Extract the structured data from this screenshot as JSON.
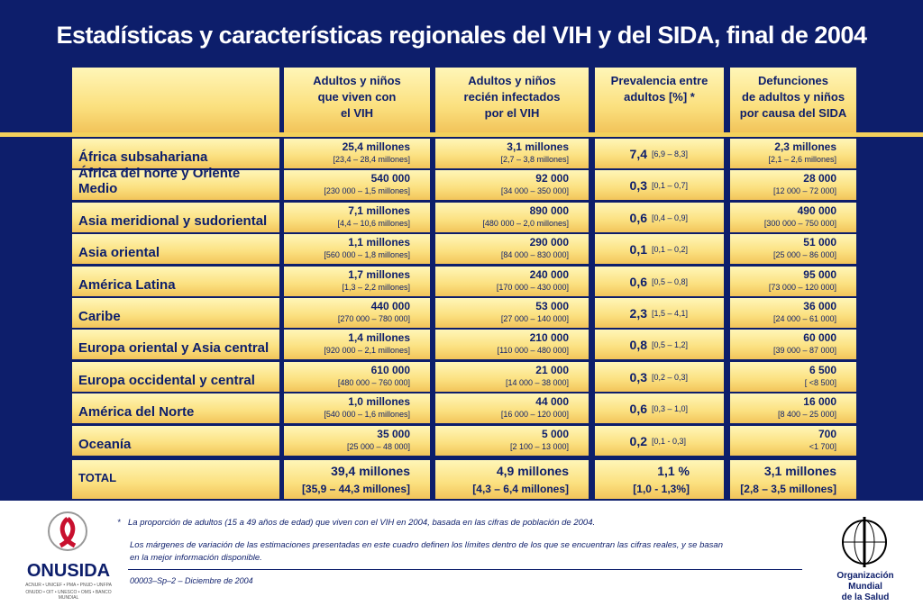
{
  "title": "Estadísticas y características regionales del VIH y del SIDA, final de 2004",
  "headers": [
    [
      "Adultos y niños",
      "que viven con",
      "el VIH"
    ],
    [
      "Adultos y niños",
      "recién infectados",
      "por el VIH"
    ],
    [
      "Prevalencia entre",
      "adultos [%] *"
    ],
    [
      "Defunciones",
      "de adultos y niños",
      "por causa del SIDA"
    ]
  ],
  "rows": [
    {
      "region": "África subsahariana",
      "cells": [
        [
          "25,4 millones",
          "[23,4 – 28,4 millones]"
        ],
        [
          "3,1 millones",
          "[2,7 – 3,8 millones]"
        ],
        [
          "7,4",
          "[6,9 – 8,3]"
        ],
        [
          "2,3 millones",
          "[2,1 – 2,6 millones]"
        ]
      ]
    },
    {
      "region": "África del norte y Oriente Medio",
      "cells": [
        [
          "540 000",
          "[230 000 – 1,5 millones]"
        ],
        [
          "92 000",
          "[34 000 – 350 000]"
        ],
        [
          "0,3",
          "[0,1 – 0,7]"
        ],
        [
          "28 000",
          "[12 000 – 72 000]"
        ]
      ]
    },
    {
      "region": "Asia meridional y sudoriental",
      "cells": [
        [
          "7,1 millones",
          "[4,4 – 10,6 millones]"
        ],
        [
          "890 000",
          "[480 000 – 2,0 millones]"
        ],
        [
          "0,6",
          "[0,4 – 0,9]"
        ],
        [
          "490 000",
          "[300 000 – 750 000]"
        ]
      ]
    },
    {
      "region": "Asia oriental",
      "cells": [
        [
          "1,1 millones",
          "[560 000 – 1,8 millones]"
        ],
        [
          "290 000",
          "[84 000 – 830 000]"
        ],
        [
          "0,1",
          "[0,1 – 0,2]"
        ],
        [
          "51 000",
          "[25 000 – 86 000]"
        ]
      ]
    },
    {
      "region": "América Latina",
      "cells": [
        [
          "1,7 millones",
          "[1,3 – 2,2 millones]"
        ],
        [
          "240 000",
          "[170 000 – 430 000]"
        ],
        [
          "0,6",
          "[0,5 – 0,8]"
        ],
        [
          "95 000",
          "[73 000 – 120 000]"
        ]
      ]
    },
    {
      "region": "Caribe",
      "cells": [
        [
          "440 000",
          "[270 000 – 780 000]"
        ],
        [
          "53 000",
          "[27 000 – 140 000]"
        ],
        [
          "2,3",
          "[1,5 – 4,1]"
        ],
        [
          "36 000",
          "[24 000 – 61 000]"
        ]
      ]
    },
    {
      "region": "Europa oriental y Asia central",
      "cells": [
        [
          "1,4 millones",
          "[920 000 – 2,1 millones]"
        ],
        [
          "210 000",
          "[110 000 – 480 000]"
        ],
        [
          "0,8",
          "[0,5 – 1,2]"
        ],
        [
          "60 000",
          "[39 000 – 87 000]"
        ]
      ]
    },
    {
      "region": "Europa occidental y central",
      "cells": [
        [
          "610 000",
          "[480 000 – 760 000]"
        ],
        [
          "21 000",
          "[14 000 – 38 000]"
        ],
        [
          "0,3",
          "[0,2 – 0,3]"
        ],
        [
          "6 500",
          "[ <8 500]"
        ]
      ]
    },
    {
      "region": "América del Norte",
      "cells": [
        [
          "1,0 millones",
          "[540 000 – 1,6 millones]"
        ],
        [
          "44 000",
          "[16 000 – 120 000]"
        ],
        [
          "0,6",
          "[0,3 – 1,0]"
        ],
        [
          "16 000",
          "[8 400 – 25 000]"
        ]
      ]
    },
    {
      "region": "Oceanía",
      "cells": [
        [
          "35 000",
          "[25 000 – 48 000]"
        ],
        [
          "5 000",
          "[2 100 – 13 000]"
        ],
        [
          "0,2",
          "[0,1 - 0,3]"
        ],
        [
          "700",
          "<1 700]"
        ]
      ]
    }
  ],
  "total": {
    "region": "TOTAL",
    "cells": [
      [
        "39,4 millones",
        "[35,9 – 44,3 millones]"
      ],
      [
        "4,9 millones",
        "[4,3 – 6,4 millones]"
      ],
      [
        "1,1 %",
        "[1,0 - 1,3%]"
      ],
      [
        "3,1 millones",
        "[2,8 – 3,5 millones]"
      ]
    ]
  },
  "footnote": {
    "mark": "*",
    "text": "La proporción de adultos (15 a 49 años de edad) que viven con el VIH en 2004, basada en las cifras de población de 2004."
  },
  "note": [
    "Los márgenes de variación de las estimaciones presentadas en este cuadro definen los límites dentro de los que se encuentran las cifras reales, y se basan",
    "en la mejor información disponible."
  ],
  "code": "00003–Sp–2 – Diciembre de 2004",
  "left_logo": {
    "name": "ONUSIDA",
    "members": [
      "ACNUR • UNICEF • PMA • PNUD • UNFPA",
      "ONUDD • OIT • UNESCO • OMS • BANCO MUNDIAL"
    ]
  },
  "right_logo": [
    "Organización",
    "Mundial",
    "de la Salud"
  ]
}
